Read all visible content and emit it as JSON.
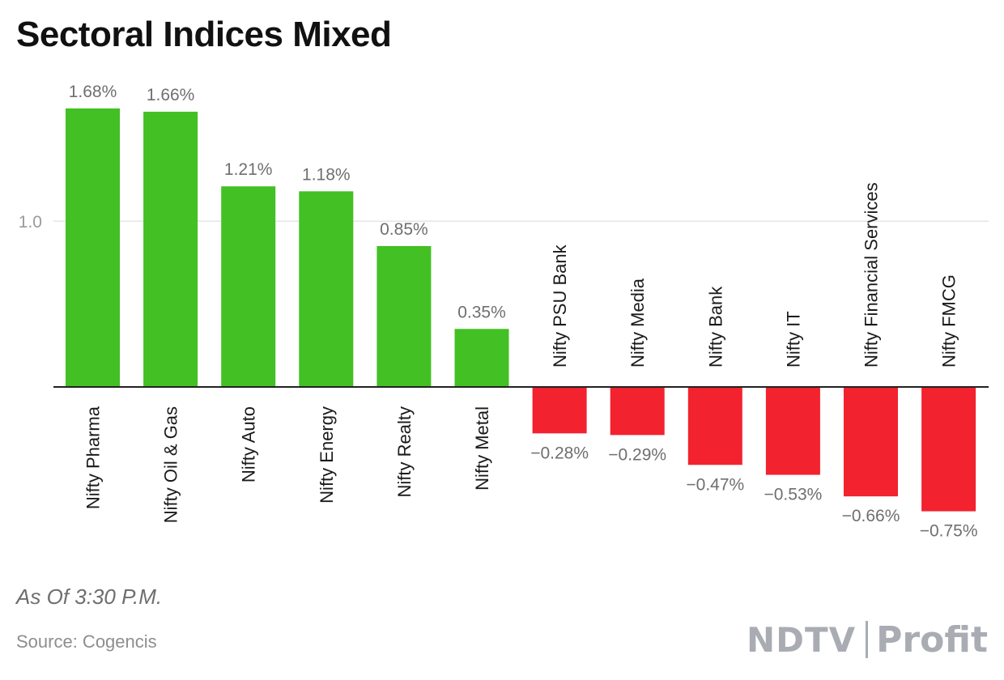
{
  "chart_data": {
    "type": "bar",
    "title": "Sectoral Indices Mixed",
    "categories": [
      "Nifty Pharma",
      "Nifty Oil & Gas",
      "Nifty Auto",
      "Nifty Energy",
      "Nifty Realty",
      "Nifty Metal",
      "Nifty PSU Bank",
      "Nifty Media",
      "Nifty Bank",
      "Nifty IT",
      "Nifty Financial Services",
      "Nifty FMCG"
    ],
    "values": [
      1.68,
      1.66,
      1.21,
      1.18,
      0.85,
      0.35,
      -0.28,
      -0.29,
      -0.47,
      -0.53,
      -0.66,
      -0.75
    ],
    "value_labels": [
      "1.68%",
      "1.66%",
      "1.21%",
      "1.18%",
      "0.85%",
      "0.35%",
      "−0.28%",
      "−0.29%",
      "−0.47%",
      "−0.53%",
      "−0.66%",
      "−0.75%"
    ],
    "yticks": [
      1.0
    ],
    "ytick_labels": [
      "1.0"
    ],
    "ylim": [
      -0.75,
      1.68
    ],
    "grid": true,
    "colors": {
      "positive": "#43c024",
      "negative": "#f2222e",
      "value_label": "#6f6f6f",
      "category_label": "#1a1a1a",
      "axis": "#222222",
      "grid": "#e6e6e6",
      "tick_label": "#9a9a9a"
    }
  },
  "note": "As Of 3:30 P.M.",
  "source": "Source: Cogencis",
  "logo": {
    "brand": "NDTV",
    "product": "Profit"
  }
}
